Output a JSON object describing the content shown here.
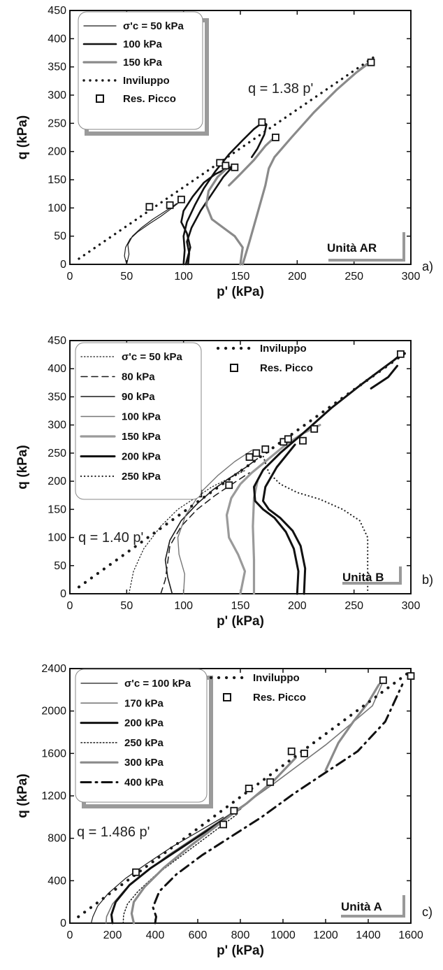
{
  "chart_data": [
    {
      "type": "line",
      "panel_label": "a)",
      "xlabel": "p' (kPa)",
      "ylabel": "q (kPa)",
      "xlim": [
        0,
        300
      ],
      "ylim": [
        0,
        450
      ],
      "xticks": [
        0,
        50,
        100,
        150,
        200,
        250,
        300
      ],
      "yticks": [
        0,
        50,
        100,
        150,
        200,
        250,
        300,
        350,
        400,
        450
      ],
      "legend_position": "top-left",
      "legend": [
        "σ'c = 50 kPa",
        "100 kPa",
        "150 kPa",
        "Inviluppo",
        "Res. Picco"
      ],
      "envelope_label": "q = 1.38 p'",
      "unit_label": "Unità AR",
      "series": [
        {
          "name": "σ'c = 50 kPa",
          "style": "thin",
          "color": "#1a1a1a",
          "width": 1.2,
          "x": [
            50,
            48,
            49,
            53,
            60,
            70,
            80,
            88,
            95,
            98
          ],
          "y": [
            0,
            15,
            30,
            45,
            58,
            72,
            85,
            97,
            108,
            115
          ]
        },
        {
          "name": "σ'c = 50 kPa",
          "style": "thin",
          "color": "#1a1a1a",
          "width": 1.2,
          "x": [
            50,
            52,
            51,
            55,
            63,
            73,
            83,
            90,
            94
          ],
          "y": [
            0,
            18,
            35,
            50,
            65,
            80,
            93,
            102,
            108
          ]
        },
        {
          "name": "100 kPa",
          "style": "thick",
          "color": "#111111",
          "width": 2.6,
          "x": [
            100,
            101,
            100,
            103,
            110,
            118,
            128,
            140,
            152,
            162,
            170,
            173,
            171,
            165,
            160
          ],
          "y": [
            0,
            25,
            50,
            75,
            105,
            135,
            165,
            195,
            220,
            240,
            252,
            248,
            230,
            205,
            190
          ]
        },
        {
          "name": "100 kPa",
          "style": "thick",
          "color": "#111111",
          "width": 2.6,
          "x": [
            102,
            104,
            106,
            103,
            98,
            100,
            108,
            118,
            128,
            138,
            145
          ],
          "y": [
            0,
            15,
            30,
            55,
            75,
            95,
            120,
            145,
            160,
            170,
            175
          ]
        },
        {
          "name": "100 kPa",
          "style": "thick",
          "color": "#111111",
          "width": 2.6,
          "x": [
            104,
            105,
            103,
            107,
            115,
            125,
            135,
            144
          ],
          "y": [
            0,
            20,
            40,
            65,
            95,
            125,
            155,
            175
          ]
        },
        {
          "name": "150 kPa",
          "style": "thick",
          "color": "#8a8a8a",
          "width": 3.2,
          "x": [
            150,
            152,
            145,
            135,
            125,
            120,
            122,
            130,
            138,
            140
          ],
          "y": [
            0,
            30,
            50,
            65,
            80,
            105,
            130,
            155,
            170,
            175
          ]
        },
        {
          "name": "150 kPa",
          "style": "thick",
          "color": "#8a8a8a",
          "width": 3.2,
          "x": [
            152,
            158,
            165,
            172,
            175,
            180,
            195,
            215,
            235,
            252,
            262
          ],
          "y": [
            0,
            40,
            90,
            140,
            170,
            190,
            225,
            270,
            310,
            340,
            355
          ]
        },
        {
          "name": "150 kPa",
          "style": "thick",
          "color": "#8a8a8a",
          "width": 3.2,
          "x": [
            140,
            150,
            162,
            172,
            180
          ],
          "y": [
            140,
            160,
            185,
            210,
            225
          ]
        },
        {
          "name": "150 kPa",
          "style": "thick",
          "color": "#8a8a8a",
          "width": 3.2,
          "x": [
            255,
            258,
            262,
            265
          ],
          "y": [
            345,
            350,
            356,
            360
          ]
        },
        {
          "name": "Inviluppo",
          "style": "dots",
          "color": "#1a1a1a",
          "width": 3.4,
          "x": [
            8,
            268
          ],
          "y": [
            10,
            368
          ]
        }
      ],
      "peak_points": {
        "name": "Res. Picco",
        "x": [
          70,
          88,
          98,
          132,
          137,
          145,
          169,
          181,
          265
        ],
        "y": [
          102,
          105,
          115,
          180,
          175,
          172,
          252,
          225,
          358
        ]
      }
    },
    {
      "type": "line",
      "panel_label": "b)",
      "xlabel": "p' (kPa)",
      "ylabel": "q (kPa)",
      "xlim": [
        0,
        300
      ],
      "ylim": [
        0,
        450
      ],
      "xticks": [
        0,
        50,
        100,
        150,
        200,
        250,
        300
      ],
      "yticks": [
        0,
        50,
        100,
        150,
        200,
        250,
        300,
        350,
        400,
        450
      ],
      "legend_position": "top-left",
      "legend": [
        "σ'c = 50 kPa",
        "80 kPa",
        "90 kPa",
        "100 kPa",
        "150 kPa",
        "200 kPa",
        "250 kPa",
        "Inviluppo",
        "Res. Picco"
      ],
      "envelope_label": "q = 1.40 p'",
      "unit_label": "Unità B",
      "series": [
        {
          "name": "σ'c = 50 kPa",
          "style": "dotted",
          "color": "#1a1a1a",
          "width": 1.2,
          "x": [
            52,
            56,
            65,
            80,
            95,
            110,
            125,
            140,
            155
          ],
          "y": [
            0,
            40,
            80,
            120,
            150,
            170,
            190,
            205,
            220
          ]
        },
        {
          "name": "80 kPa",
          "style": "dashed",
          "color": "#1a1a1a",
          "width": 1.5,
          "x": [
            80,
            84,
            86,
            88,
            98,
            112,
            128,
            145,
            158
          ],
          "y": [
            0,
            25,
            55,
            85,
            120,
            150,
            175,
            198,
            215
          ]
        },
        {
          "name": "90 kPa",
          "style": "solid",
          "color": "#1a1a1a",
          "width": 1.6,
          "x": [
            90,
            86,
            84,
            88,
            98,
            112,
            126,
            140,
            155,
            165
          ],
          "y": [
            0,
            30,
            60,
            95,
            130,
            160,
            185,
            205,
            225,
            240
          ]
        },
        {
          "name": "100 kPa",
          "style": "solid",
          "color": "#777777",
          "width": 1.4,
          "x": [
            100,
            101,
            96,
            95,
            102,
            115,
            130,
            145,
            160
          ],
          "y": [
            0,
            35,
            70,
            100,
            140,
            180,
            210,
            235,
            255
          ]
        },
        {
          "name": "150 kPa",
          "style": "thick",
          "color": "#9a9a9a",
          "width": 3.2,
          "x": [
            150,
            154,
            148,
            140,
            138,
            142,
            150,
            160,
            175,
            190,
            205,
            220
          ],
          "y": [
            0,
            40,
            70,
            100,
            140,
            170,
            195,
            215,
            240,
            265,
            285,
            300
          ]
        },
        {
          "name": "150 kPa",
          "style": "thick",
          "color": "#9a9a9a",
          "width": 3.2,
          "x": [
            162,
            162,
            161,
            162,
            165
          ],
          "y": [
            0,
            60,
            120,
            170,
            200
          ]
        },
        {
          "name": "200 kPa",
          "style": "thick",
          "color": "#111111",
          "width": 3.0,
          "x": [
            200,
            201,
            197,
            190,
            180,
            170,
            163,
            162,
            170,
            185,
            205,
            230,
            255,
            275,
            285,
            291
          ],
          "y": [
            0,
            40,
            80,
            110,
            135,
            150,
            165,
            190,
            220,
            250,
            285,
            330,
            370,
            400,
            415,
            425
          ]
        },
        {
          "name": "200 kPa",
          "style": "thick",
          "color": "#111111",
          "width": 3.0,
          "x": [
            206,
            207,
            203,
            196,
            185,
            175,
            170,
            172,
            182,
            198
          ],
          "y": [
            0,
            45,
            85,
            112,
            135,
            150,
            165,
            190,
            225,
            265
          ]
        },
        {
          "name": "200 kPa",
          "style": "thick",
          "color": "#111111",
          "width": 3.0,
          "x": [
            265,
            280,
            288
          ],
          "y": [
            365,
            385,
            405
          ]
        },
        {
          "name": "250 kPa",
          "style": "dotted-thick",
          "color": "#222222",
          "width": 2.2,
          "x": [
            262,
            262,
            255,
            240,
            220,
            200,
            185,
            175,
            170
          ],
          "y": [
            0,
            100,
            130,
            150,
            168,
            180,
            195,
            215,
            245
          ]
        },
        {
          "name": "Inviluppo",
          "style": "dots",
          "color": "#1a1a1a",
          "width": 4.2,
          "x": [
            8,
            295
          ],
          "y": [
            12,
            428
          ]
        }
      ],
      "peak_points": {
        "name": "Res. Picco",
        "x": [
          113,
          140,
          158,
          164,
          172,
          188,
          192,
          205,
          215,
          291
        ],
        "y": [
          178,
          193,
          243,
          250,
          257,
          270,
          275,
          272,
          293,
          426
        ]
      }
    },
    {
      "type": "line",
      "panel_label": "c)",
      "xlabel": "p' (kPa)",
      "ylabel": "q (kPa)",
      "xlim": [
        0,
        1600
      ],
      "ylim": [
        0,
        2400
      ],
      "xticks": [
        0,
        200,
        400,
        600,
        800,
        1000,
        1200,
        1400,
        1600
      ],
      "yticks": [
        0,
        400,
        800,
        1200,
        1600,
        2000,
        2400
      ],
      "legend_position": "top-left",
      "legend": [
        "σ'c = 100 kPa",
        "170 kPa",
        "200 kPa",
        "250 kPa",
        "300 kPa",
        "400 kPa",
        "Inviluppo",
        "Res. Picco"
      ],
      "envelope_label": "q = 1.486 p'",
      "unit_label": "Unità A",
      "series": [
        {
          "name": "σ'c = 100 kPa",
          "style": "solid",
          "color": "#1a1a1a",
          "width": 1.2,
          "x": [
            100,
            108,
            130,
            180,
            260,
            360,
            480,
            600,
            720
          ],
          "y": [
            0,
            60,
            160,
            280,
            420,
            560,
            720,
            860,
            1000
          ]
        },
        {
          "name": "170 kPa",
          "style": "solid",
          "color": "#777777",
          "width": 1.6,
          "x": [
            170,
            172,
            200,
            260,
            350,
            460,
            580,
            700,
            820,
            960,
            1080,
            1200,
            1320,
            1420,
            1470
          ],
          "y": [
            0,
            60,
            180,
            320,
            470,
            640,
            800,
            960,
            1120,
            1320,
            1500,
            1680,
            1880,
            2050,
            2280
          ]
        },
        {
          "name": "200 kPa",
          "style": "thick",
          "color": "#111111",
          "width": 3.0,
          "x": [
            200,
            195,
            215,
            280,
            380,
            500,
            620,
            740,
            800
          ],
          "y": [
            0,
            80,
            200,
            360,
            520,
            680,
            840,
            1000,
            1080
          ]
        },
        {
          "name": "250 kPa",
          "style": "dotted",
          "color": "#1a1a1a",
          "width": 1.5,
          "x": [
            250,
            252,
            270,
            320,
            400,
            500,
            600,
            700,
            780
          ],
          "y": [
            0,
            80,
            180,
            300,
            450,
            600,
            750,
            900,
            1020
          ]
        },
        {
          "name": "300 kPa",
          "style": "thick",
          "color": "#8a8a8a",
          "width": 3.2,
          "x": [
            300,
            290,
            300,
            350,
            440,
            560,
            690,
            830,
            960,
            1060
          ],
          "y": [
            0,
            90,
            200,
            340,
            520,
            720,
            920,
            1130,
            1350,
            1560
          ]
        },
        {
          "name": "300 kPa",
          "style": "thick",
          "color": "#8a8a8a",
          "width": 3.2,
          "x": [
            1200,
            1260,
            1330,
            1400,
            1450
          ],
          "y": [
            1440,
            1700,
            1900,
            2080,
            2250
          ]
        },
        {
          "name": "400 kPa",
          "style": "dashdot",
          "color": "#111111",
          "width": 3.0,
          "x": [
            400,
            405,
            390,
            420,
            500,
            620,
            760,
            900,
            1050,
            1200,
            1350,
            1480,
            1560
          ],
          "y": [
            0,
            60,
            150,
            300,
            460,
            640,
            820,
            1000,
            1220,
            1420,
            1620,
            1900,
            2250
          ]
        },
        {
          "name": "Inviluppo",
          "style": "dots",
          "color": "#1a1a1a",
          "width": 4.2,
          "x": [
            40,
            1595
          ],
          "y": [
            60,
            2370
          ]
        }
      ],
      "peak_points": {
        "name": "Res. Picco",
        "x": [
          310,
          720,
          770,
          840,
          940,
          1040,
          1100,
          1470,
          1600
        ],
        "y": [
          480,
          930,
          1060,
          1270,
          1330,
          1620,
          1600,
          2290,
          2330
        ]
      }
    }
  ]
}
